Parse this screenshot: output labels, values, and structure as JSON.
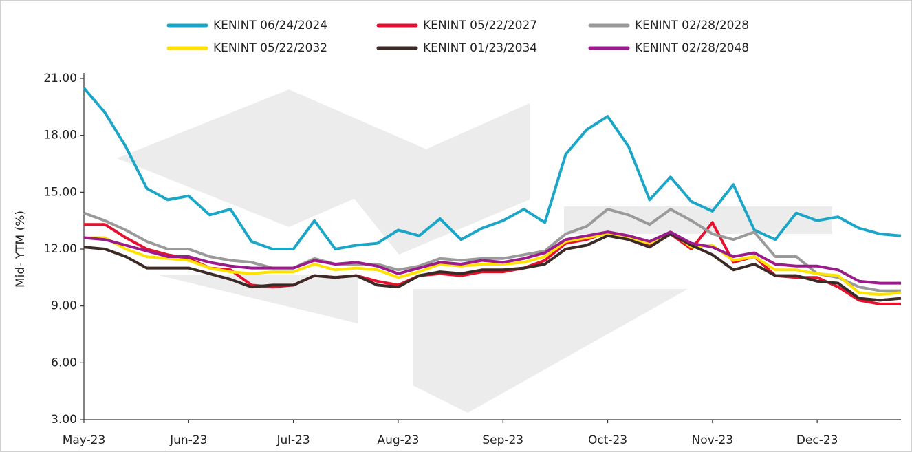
{
  "chart_data": {
    "type": "line",
    "y_label": "Mid- YTM (%)",
    "categories": [
      "May-23",
      null,
      null,
      null,
      null,
      "Jun-23",
      null,
      null,
      null,
      null,
      "Jul-23",
      null,
      null,
      null,
      null,
      "Aug-23",
      null,
      null,
      null,
      null,
      "Sep-23",
      null,
      null,
      null,
      null,
      "Oct-23",
      null,
      null,
      null,
      null,
      "Nov-23",
      null,
      null,
      null,
      null,
      "Dec-23",
      null,
      null,
      null,
      null
    ],
    "ylim": [
      3,
      21
    ],
    "yticks": [
      {
        "value": 3,
        "label": "3.00"
      },
      {
        "value": 6,
        "label": "6.00"
      },
      {
        "value": 9,
        "label": "9.00"
      },
      {
        "value": 12,
        "label": "12.00"
      },
      {
        "value": 15,
        "label": "15.00"
      },
      {
        "value": 18,
        "label": "18.00"
      },
      {
        "value": 21,
        "label": "21.00"
      }
    ],
    "grid": false,
    "legend": "top",
    "series": [
      {
        "name": "KENINT 06/24/2024",
        "color": "#1ba6c8",
        "values": [
          20.5,
          19.2,
          17.4,
          15.2,
          14.6,
          14.8,
          13.8,
          14.1,
          12.4,
          12.0,
          12.0,
          13.5,
          12.0,
          12.2,
          12.3,
          13.0,
          12.7,
          13.6,
          12.5,
          13.1,
          13.5,
          14.1,
          13.4,
          17.0,
          18.3,
          19.0,
          17.4,
          14.6,
          15.8,
          14.5,
          14.0,
          15.4,
          13.0,
          12.5,
          13.9,
          13.5,
          13.7,
          13.1,
          12.8,
          12.7
        ]
      },
      {
        "name": "KENINT 05/22/2027",
        "color": "#e5112e",
        "values": [
          13.3,
          13.3,
          12.6,
          12.0,
          11.7,
          11.5,
          11.0,
          10.9,
          10.1,
          10.0,
          10.1,
          10.6,
          10.5,
          10.6,
          10.3,
          10.1,
          10.6,
          10.7,
          10.6,
          10.8,
          10.8,
          11.0,
          11.4,
          12.3,
          12.5,
          12.9,
          12.7,
          12.2,
          12.8,
          12.0,
          13.4,
          11.3,
          11.6,
          10.6,
          10.5,
          10.5,
          10.0,
          9.3,
          9.1,
          9.1
        ]
      },
      {
        "name": "KENINT 02/28/2028",
        "color": "#9a9a9a",
        "values": [
          13.9,
          13.5,
          13.0,
          12.4,
          12.0,
          12.0,
          11.6,
          11.4,
          11.3,
          11.0,
          11.0,
          11.5,
          11.2,
          11.2,
          11.2,
          10.9,
          11.1,
          11.5,
          11.4,
          11.5,
          11.5,
          11.7,
          11.9,
          12.8,
          13.2,
          14.1,
          13.8,
          13.3,
          14.1,
          13.5,
          12.8,
          12.5,
          12.9,
          11.6,
          11.6,
          10.7,
          10.5,
          10.0,
          9.8,
          9.8
        ]
      },
      {
        "name": "KENINT 05/22/2032",
        "color": "#ffe200",
        "values": [
          12.6,
          12.6,
          12.0,
          11.6,
          11.5,
          11.4,
          11.0,
          10.8,
          10.7,
          10.8,
          10.8,
          11.2,
          10.9,
          11.0,
          10.9,
          10.5,
          10.8,
          11.2,
          11.1,
          11.2,
          11.2,
          11.3,
          11.6,
          12.4,
          12.6,
          12.8,
          12.6,
          12.3,
          12.9,
          12.1,
          12.2,
          11.4,
          11.6,
          10.9,
          10.9,
          10.7,
          10.6,
          9.7,
          9.6,
          9.7
        ]
      },
      {
        "name": "KENINT 01/23/2034",
        "color": "#3b2a26",
        "values": [
          12.1,
          12.0,
          11.6,
          11.0,
          11.0,
          11.0,
          10.7,
          10.4,
          10.0,
          10.1,
          10.1,
          10.6,
          10.5,
          10.6,
          10.1,
          10.0,
          10.6,
          10.8,
          10.7,
          10.9,
          10.9,
          11.0,
          11.2,
          12.0,
          12.2,
          12.7,
          12.5,
          12.1,
          12.8,
          12.2,
          11.7,
          10.9,
          11.2,
          10.6,
          10.6,
          10.3,
          10.2,
          9.4,
          9.3,
          9.4
        ]
      },
      {
        "name": "KENINT 02/28/2048",
        "color": "#9b1b8d",
        "values": [
          12.6,
          12.5,
          12.2,
          11.9,
          11.6,
          11.6,
          11.3,
          11.1,
          11.0,
          11.0,
          11.0,
          11.4,
          11.2,
          11.3,
          11.1,
          10.7,
          11.0,
          11.3,
          11.2,
          11.4,
          11.3,
          11.5,
          11.8,
          12.5,
          12.7,
          12.9,
          12.7,
          12.4,
          12.9,
          12.3,
          12.1,
          11.6,
          11.8,
          11.2,
          11.1,
          11.1,
          10.9,
          10.3,
          10.2,
          10.2
        ]
      }
    ]
  }
}
